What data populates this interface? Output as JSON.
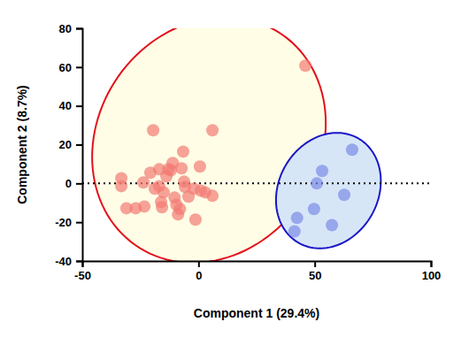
{
  "chart_data": {
    "type": "scatter",
    "x_label": "Component 1 (29.4%)",
    "y_label": "Component 2 (8.7%)",
    "xlim": [
      -50,
      100
    ],
    "ylim": [
      -40,
      80
    ],
    "xticks": [
      -50,
      0,
      50,
      100
    ],
    "yticks": [
      -40,
      -20,
      0,
      20,
      40,
      60,
      80
    ],
    "grid": false,
    "marker": "circle",
    "reference_line": {
      "y": 0,
      "line_style": "dotted"
    },
    "series": [
      {
        "color": "#f27b73",
        "x": [
          -33.2,
          -33.2,
          -31,
          -27,
          -23.3,
          -23.7,
          -20.7,
          -19.5,
          -18.8,
          -16.9,
          -16.9,
          -16.1,
          -15.7,
          -15,
          -13.8,
          -13,
          -11.9,
          -11.1,
          -10.3,
          -9.5,
          -8.8,
          -8,
          -7.3,
          -6.6,
          -6.2,
          -5.8,
          -4.3,
          -2,
          -1.3,
          0.6,
          1,
          2.9,
          6,
          6,
          46
        ],
        "y": [
          2.7,
          -1.4,
          -12.8,
          -12.8,
          -11.9,
          0.5,
          5.5,
          27.4,
          -2.7,
          7.3,
          -1.4,
          -9.6,
          -12.3,
          -4.6,
          3.7,
          7.3,
          6.8,
          10.5,
          -7.3,
          -11,
          -16,
          -13.2,
          7.8,
          16.4,
          0.9,
          -1.8,
          -6.8,
          -2.7,
          -18.7,
          8.7,
          -3.7,
          -4.6,
          27.4,
          -6.4,
          60.7
        ],
        "ellipse": {
          "center": [
            4.5,
            22.4
          ],
          "axes": [
            [
              31.7,
              54.2
            ],
            [
              39.0,
              -32.8
            ]
          ],
          "color": "#e3101a"
        }
      },
      {
        "color": "#7c8ce6",
        "x": [
          41.3,
          42.4,
          49.7,
          50.9,
          53.2,
          57.4,
          62.7,
          66.1
        ],
        "y": [
          -24.7,
          -17.8,
          -13.2,
          0,
          6.4,
          -21.5,
          -5.9,
          17.4
        ],
        "ellipse": {
          "center": [
            55.9,
            -3.7
          ],
          "axes": [
            [
              12.9,
              26.9
            ],
            [
              18.5,
              -12.8
            ]
          ],
          "color": "#1a16c8"
        }
      }
    ]
  }
}
